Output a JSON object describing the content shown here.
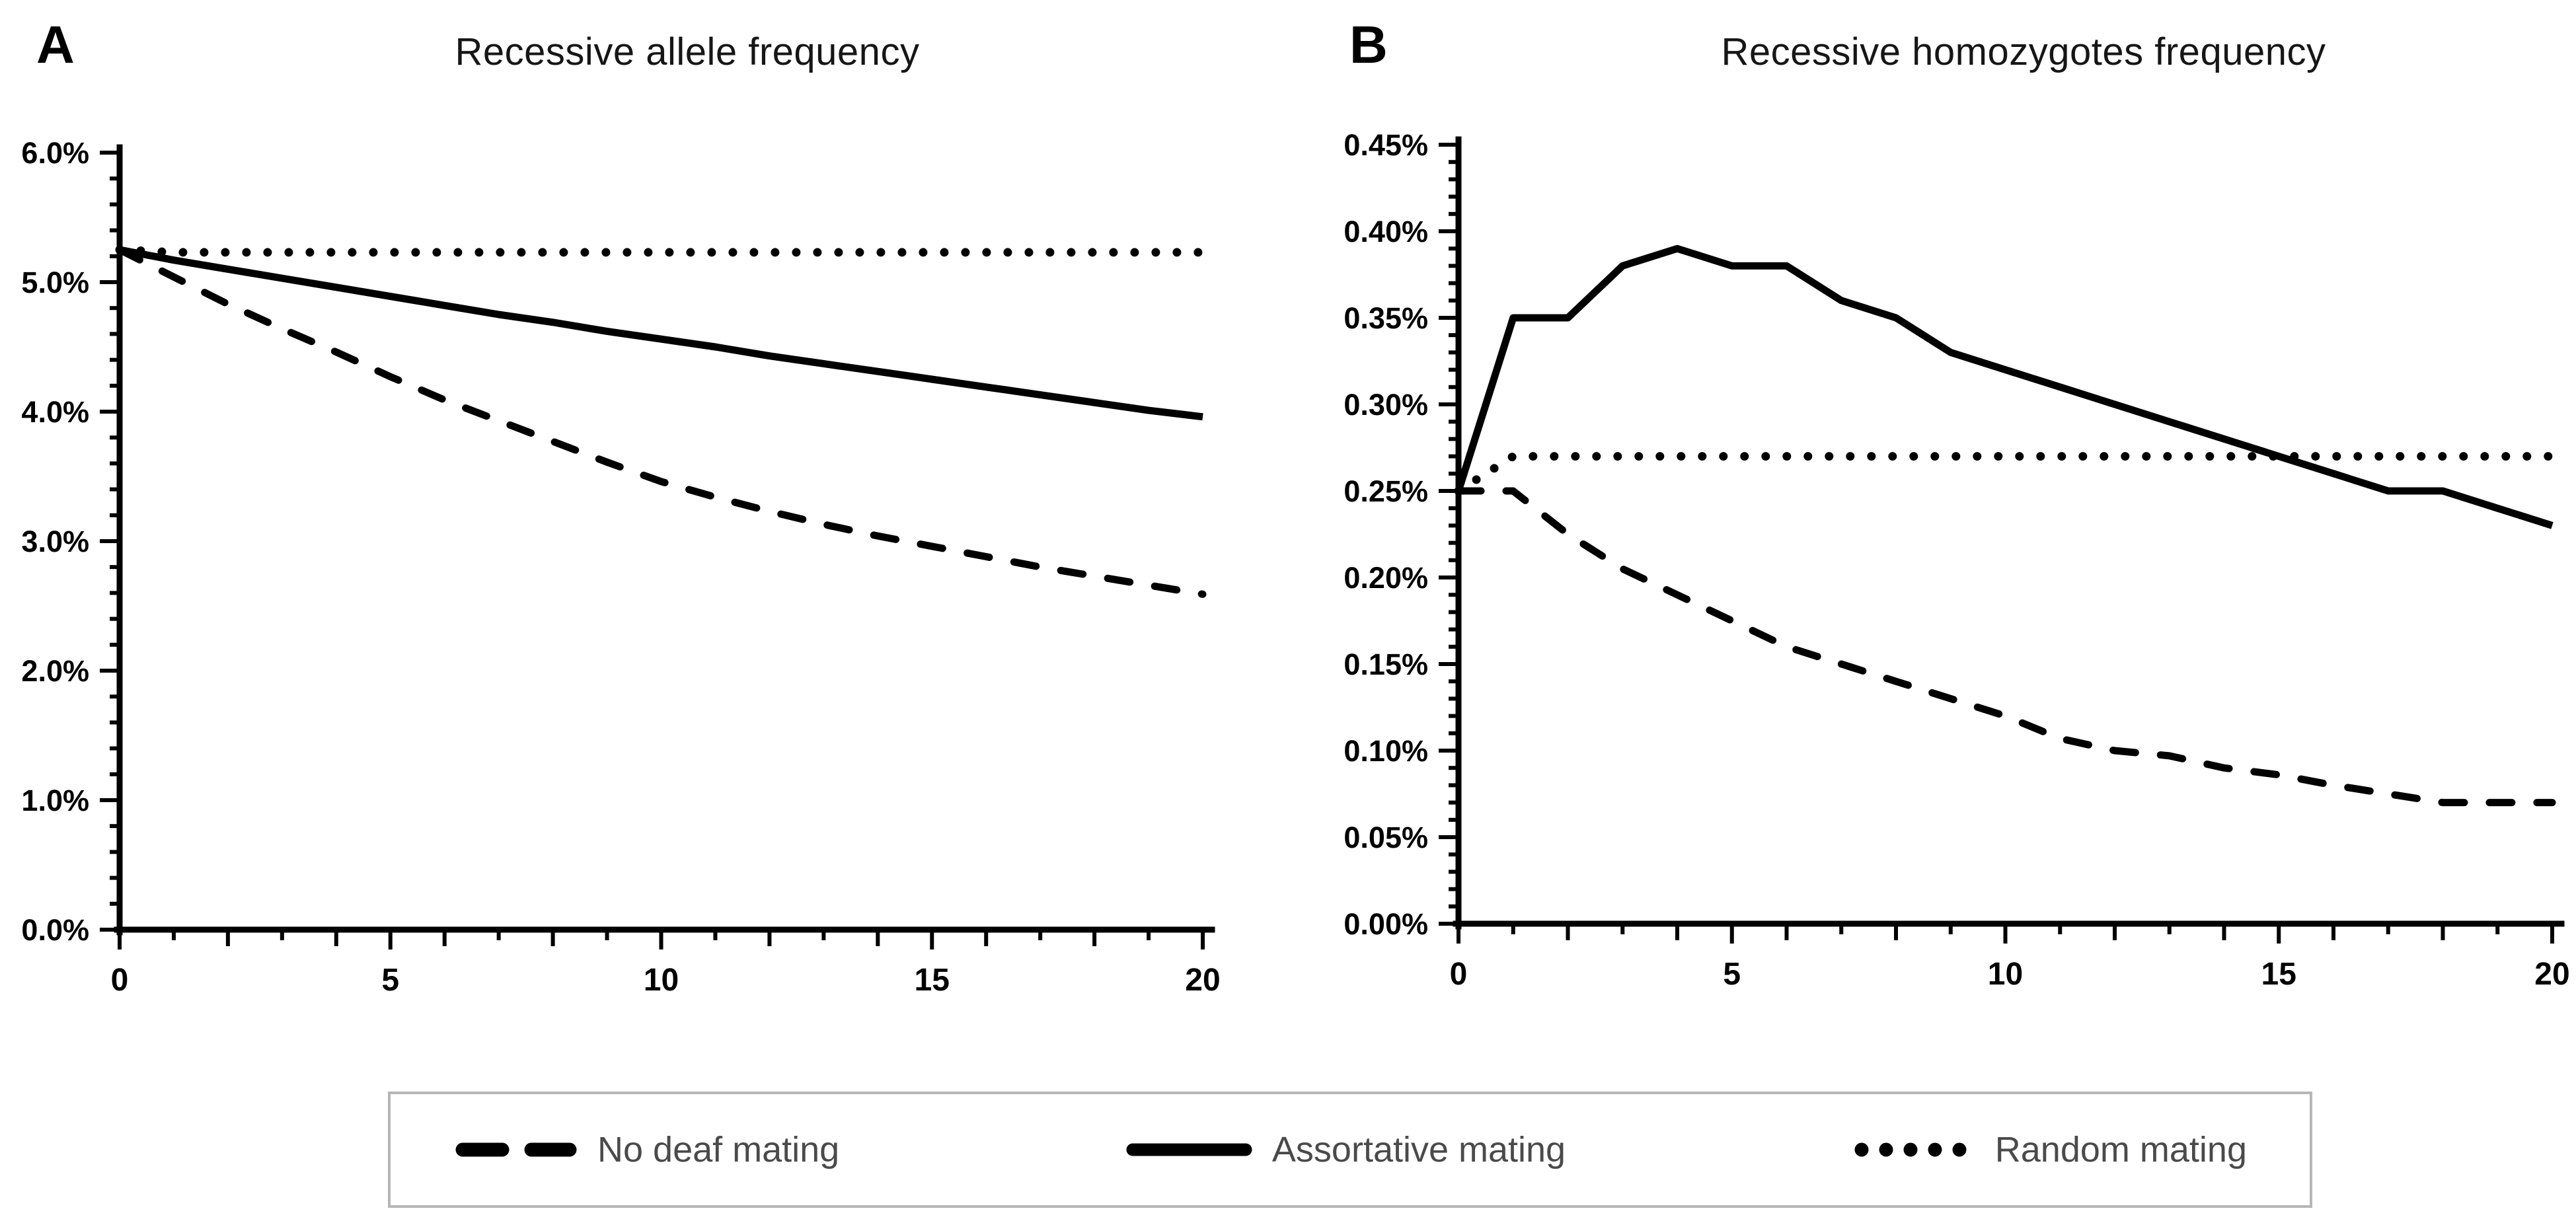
{
  "figure": {
    "background": "#ffffff",
    "line_color": "#000000",
    "legend_text_color": "#4a4a4a",
    "legend_border_color": "#b6b6b6"
  },
  "chart_data": [
    {
      "id": "A",
      "panel_letter": "A",
      "title": "Recessive allele frequency",
      "type": "line",
      "grid": false,
      "xlim": [
        0,
        20
      ],
      "ylim": [
        0,
        6.0
      ],
      "ymajor": 1.0,
      "yminor": 0.2,
      "x_ticks": [
        {
          "value": 0,
          "label": "0"
        },
        {
          "value": 5,
          "label": "5"
        },
        {
          "value": 10,
          "label": "10"
        },
        {
          "value": 15,
          "label": "15"
        },
        {
          "value": 20,
          "label": "20"
        }
      ],
      "y_ticks": [
        {
          "value": 6.0,
          "label": "6.0%"
        },
        {
          "value": 5.0,
          "label": "5.0%"
        },
        {
          "value": 4.0,
          "label": "4.0%"
        },
        {
          "value": 3.0,
          "label": "3.0%"
        },
        {
          "value": 2.0,
          "label": "2.0%"
        },
        {
          "value": 1.0,
          "label": "1.0%"
        },
        {
          "value": 0.0,
          "label": "0.0%"
        }
      ],
      "x": [
        0,
        1,
        2,
        3,
        4,
        5,
        6,
        7,
        8,
        9,
        10,
        11,
        12,
        13,
        14,
        15,
        16,
        17,
        18,
        19,
        20
      ],
      "series": [
        {
          "name": "No deaf mating",
          "style": "dashed",
          "values": [
            5.25,
            5.04,
            4.83,
            4.64,
            4.46,
            4.27,
            4.09,
            3.93,
            3.77,
            3.61,
            3.46,
            3.34,
            3.23,
            3.13,
            3.04,
            2.96,
            2.88,
            2.8,
            2.73,
            2.66,
            2.59
          ]
        },
        {
          "name": "Assortative mating",
          "style": "solid",
          "values": [
            5.25,
            5.17,
            5.1,
            5.03,
            4.96,
            4.89,
            4.82,
            4.75,
            4.69,
            4.62,
            4.56,
            4.5,
            4.43,
            4.37,
            4.31,
            4.25,
            4.19,
            4.13,
            4.07,
            4.01,
            3.96
          ]
        },
        {
          "name": "Random mating",
          "style": "dotted",
          "values": [
            5.25,
            5.23,
            5.23,
            5.23,
            5.23,
            5.23,
            5.23,
            5.23,
            5.23,
            5.23,
            5.23,
            5.23,
            5.23,
            5.23,
            5.23,
            5.23,
            5.23,
            5.23,
            5.23,
            5.23,
            5.23
          ]
        }
      ]
    },
    {
      "id": "B",
      "panel_letter": "B",
      "title": "Recessive homozygotes frequency",
      "type": "line",
      "grid": false,
      "xlim": [
        0,
        20
      ],
      "ylim": [
        0,
        0.45
      ],
      "ymajor": 0.05,
      "yminor": 0.01,
      "x_ticks": [
        {
          "value": 0,
          "label": "0"
        },
        {
          "value": 5,
          "label": "5"
        },
        {
          "value": 10,
          "label": "10"
        },
        {
          "value": 15,
          "label": "15"
        },
        {
          "value": 20,
          "label": "20"
        }
      ],
      "y_ticks": [
        {
          "value": 0.45,
          "label": "0.45%"
        },
        {
          "value": 0.4,
          "label": "0.40%"
        },
        {
          "value": 0.35,
          "label": "0.35%"
        },
        {
          "value": 0.3,
          "label": "0.30%"
        },
        {
          "value": 0.25,
          "label": "0.25%"
        },
        {
          "value": 0.2,
          "label": "0.20%"
        },
        {
          "value": 0.15,
          "label": "0.15%"
        },
        {
          "value": 0.1,
          "label": "0.10%"
        },
        {
          "value": 0.05,
          "label": "0.05%"
        },
        {
          "value": 0.0,
          "label": "0.00%"
        }
      ],
      "x": [
        0,
        1,
        2,
        3,
        4,
        5,
        6,
        7,
        8,
        9,
        10,
        11,
        12,
        13,
        14,
        15,
        16,
        17,
        18,
        19,
        20
      ],
      "series": [
        {
          "name": "No deaf mating",
          "style": "dashed",
          "values": [
            0.25,
            0.25,
            0.225,
            0.205,
            0.19,
            0.175,
            0.16,
            0.15,
            0.14,
            0.13,
            0.12,
            0.107,
            0.1,
            0.097,
            0.09,
            0.086,
            0.08,
            0.075,
            0.07,
            0.07,
            0.07
          ]
        },
        {
          "name": "Assortative mating",
          "style": "solid",
          "values": [
            0.25,
            0.35,
            0.35,
            0.38,
            0.39,
            0.38,
            0.38,
            0.36,
            0.35,
            0.33,
            0.32,
            0.31,
            0.3,
            0.29,
            0.28,
            0.27,
            0.26,
            0.25,
            0.25,
            0.24,
            0.23
          ]
        },
        {
          "name": "Random mating",
          "style": "dotted",
          "values": [
            0.25,
            0.27,
            0.27,
            0.27,
            0.27,
            0.27,
            0.27,
            0.27,
            0.27,
            0.27,
            0.27,
            0.27,
            0.27,
            0.27,
            0.27,
            0.27,
            0.27,
            0.27,
            0.27,
            0.27,
            0.27
          ]
        }
      ]
    }
  ],
  "legend": {
    "items": [
      {
        "label": "No deaf mating",
        "style": "dashed"
      },
      {
        "label": "Assortative mating",
        "style": "solid"
      },
      {
        "label": "Random mating",
        "style": "dotted"
      }
    ]
  }
}
